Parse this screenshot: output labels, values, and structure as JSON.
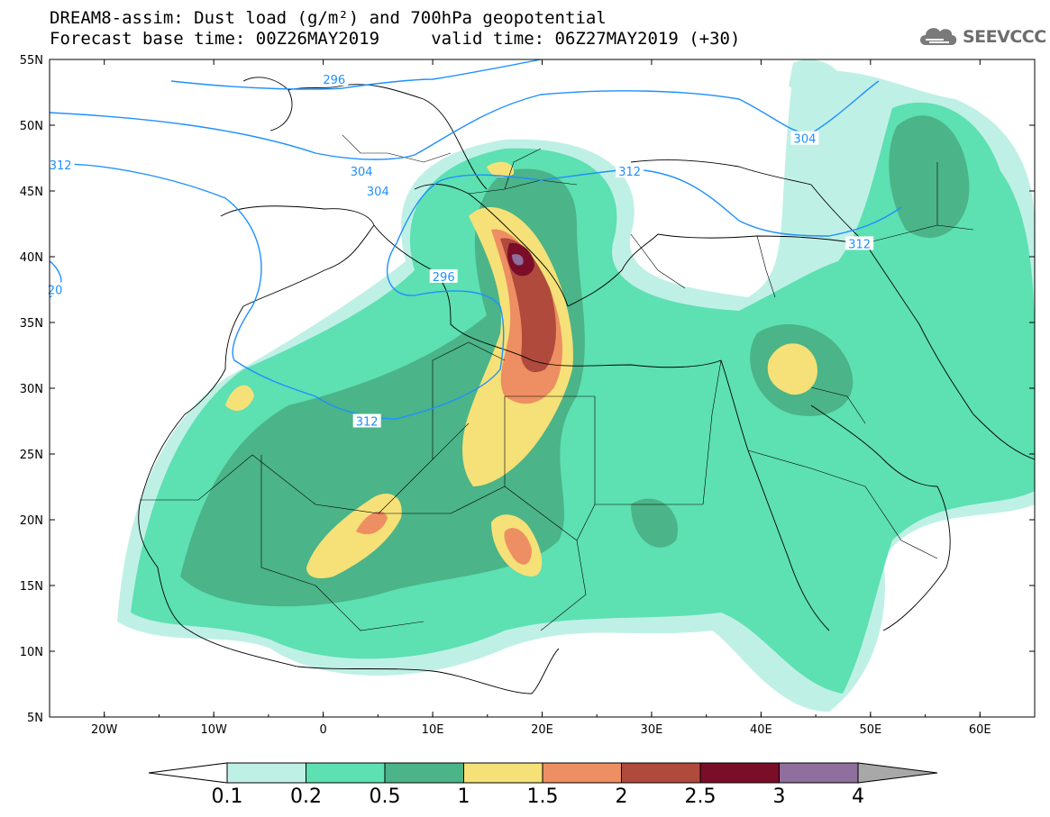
{
  "title": {
    "line1": "DREAM8-assim: Dust load (g/m²) and 700hPa geopotential",
    "line2": "Forecast base time: 00Z26MAY2019     valid time: 06Z27MAY2019 (+30)"
  },
  "logo": {
    "text": "SEEVCCC",
    "icon": "cloud-logo-icon"
  },
  "map": {
    "lon_range": [
      -25,
      65
    ],
    "lat_range": [
      5,
      55
    ],
    "lat_ticks": [
      "55N",
      "50N",
      "45N",
      "40N",
      "35N",
      "30N",
      "25N",
      "20N",
      "15N",
      "10N",
      "5N"
    ],
    "lon_ticks": [
      "20W",
      "10W",
      "0",
      "10E",
      "20E",
      "30E",
      "40E",
      "50E",
      "60E"
    ],
    "contour_labels": [
      {
        "text": "296",
        "lon": 1,
        "lat": 53.5
      },
      {
        "text": "304",
        "lon": 44,
        "lat": 49
      },
      {
        "text": "312",
        "lon": -24,
        "lat": 47
      },
      {
        "text": "304",
        "lon": 3.5,
        "lat": 46.5
      },
      {
        "text": "304",
        "lon": 5,
        "lat": 45
      },
      {
        "text": "312",
        "lon": 28,
        "lat": 46.5
      },
      {
        "text": "312",
        "lon": 49,
        "lat": 41
      },
      {
        "text": "296",
        "lon": 11,
        "lat": 38.5
      },
      {
        "text": "312",
        "lon": 4,
        "lat": 27.5
      },
      {
        "text": "20",
        "lon": -24.5,
        "lat": 37.5
      }
    ],
    "contour_color": "#1e90ff",
    "border_color": "#000000"
  },
  "colorbar": {
    "labels": [
      "0.1",
      "0.2",
      "0.5",
      "1",
      "1.5",
      "2",
      "2.5",
      "3",
      "4"
    ],
    "colors": [
      "#bff0e6",
      "#5de0b2",
      "#4bb488",
      "#f5e177",
      "#ed8f62",
      "#b04a3c",
      "#7a0d28",
      "#8f6f9e"
    ],
    "low_color": "#ffffff",
    "high_color": "#a8a8a8"
  }
}
